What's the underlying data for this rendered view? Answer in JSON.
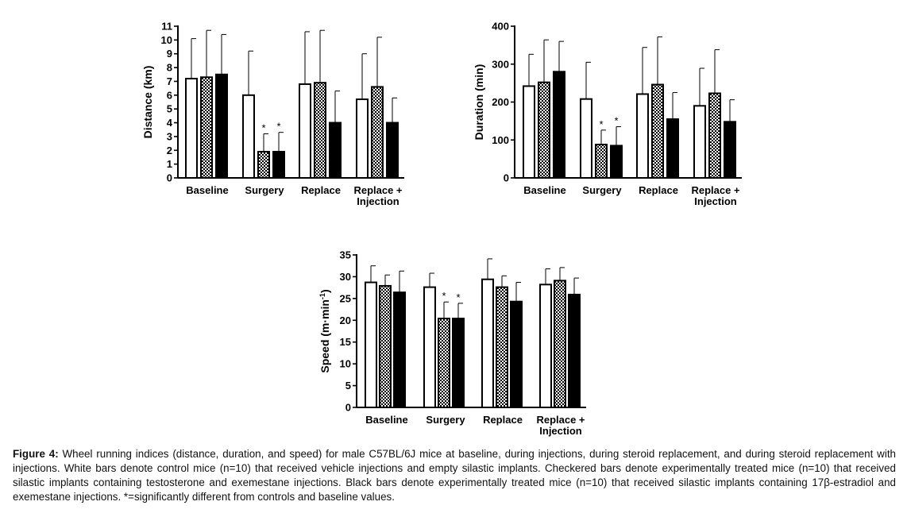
{
  "colors": {
    "control": "#ffffff",
    "testosterone": "checkered",
    "estradiol": "#000000"
  },
  "chart_data": [
    {
      "type": "bar",
      "ylabel": "Distance (km)",
      "ylim": [
        0,
        11
      ],
      "yticks": [
        0,
        1,
        2,
        3,
        4,
        5,
        6,
        7,
        8,
        9,
        10,
        11
      ],
      "categories": [
        "Baseline",
        "Surgery",
        "Replace",
        "Replace + Injection"
      ],
      "category_labels": [
        [
          "Baseline"
        ],
        [
          "Surgery"
        ],
        [
          "Replace"
        ],
        [
          "Replace +",
          "Injection"
        ]
      ],
      "series": [
        {
          "fill": "white",
          "values": [
            7.2,
            6.0,
            6.8,
            5.7
          ],
          "errors": [
            2.9,
            3.2,
            3.8,
            3.3
          ],
          "star": [
            false,
            false,
            false,
            false
          ]
        },
        {
          "fill": "checker",
          "values": [
            7.3,
            1.9,
            6.9,
            6.6
          ],
          "errors": [
            3.4,
            1.3,
            3.8,
            3.6
          ],
          "star": [
            false,
            true,
            false,
            false
          ]
        },
        {
          "fill": "black",
          "values": [
            7.5,
            1.9,
            4.0,
            4.0
          ],
          "errors": [
            2.9,
            1.4,
            2.3,
            1.8
          ],
          "star": [
            false,
            true,
            false,
            false
          ]
        }
      ]
    },
    {
      "type": "bar",
      "ylabel": "Duration (min)",
      "ylim": [
        0,
        400
      ],
      "yticks": [
        0,
        100,
        200,
        300,
        400
      ],
      "categories": [
        "Baseline",
        "Surgery",
        "Replace",
        "Replace + Injection"
      ],
      "category_labels": [
        [
          "Baseline"
        ],
        [
          "Surgery"
        ],
        [
          "Replace"
        ],
        [
          "Replace +",
          "Injection"
        ]
      ],
      "series": [
        {
          "fill": "white",
          "values": [
            242,
            208,
            221,
            190
          ],
          "errors": [
            84,
            97,
            123,
            99
          ],
          "star": [
            false,
            false,
            false,
            false
          ]
        },
        {
          "fill": "checker",
          "values": [
            252,
            88,
            246,
            223
          ],
          "errors": [
            112,
            38,
            126,
            115
          ],
          "star": [
            false,
            true,
            false,
            false
          ]
        },
        {
          "fill": "black",
          "values": [
            280,
            85,
            155,
            148
          ],
          "errors": [
            80,
            50,
            70,
            58
          ],
          "star": [
            false,
            true,
            false,
            false
          ]
        }
      ]
    },
    {
      "type": "bar",
      "ylabel": "Speed (m·min",
      "ylabel_sup": "-1",
      "ylabel_end": ")",
      "ylim": [
        0,
        35
      ],
      "yticks": [
        0,
        5,
        10,
        15,
        20,
        25,
        30,
        35
      ],
      "categories": [
        "Baseline",
        "Surgery",
        "Replace",
        "Replace + Injection"
      ],
      "category_labels": [
        [
          "Baseline"
        ],
        [
          "Surgery"
        ],
        [
          "Replace"
        ],
        [
          "Replace +",
          "Injection"
        ]
      ],
      "series": [
        {
          "fill": "white",
          "values": [
            28.7,
            27.6,
            29.4,
            28.2
          ],
          "errors": [
            3.8,
            3.2,
            4.7,
            3.6
          ],
          "star": [
            false,
            false,
            false,
            false
          ]
        },
        {
          "fill": "checker",
          "values": [
            27.9,
            20.4,
            27.6,
            29.1
          ],
          "errors": [
            2.5,
            3.8,
            2.6,
            3.0
          ],
          "star": [
            false,
            true,
            false,
            false
          ]
        },
        {
          "fill": "black",
          "values": [
            26.4,
            20.4,
            24.3,
            25.9
          ],
          "errors": [
            4.9,
            3.5,
            4.4,
            3.8
          ],
          "star": [
            false,
            true,
            false,
            false
          ]
        }
      ]
    }
  ],
  "caption": {
    "label": "Figure 4:",
    "text": " Wheel running indices (distance, duration, and speed) for male C57BL/6J mice at baseline, during injections, during steroid replacement, and during steroid replacement with injections. White bars denote control mice (n=10) that received vehicle injections and empty silastic implants. Checkered bars denote experimentally treated mice (n=10) that received silastic implants containing testosterone and exemestane injections. Black bars denote experimentally treated mice (n=10) that received silastic implants containing 17β-estradiol and exemestane injections. *=significantly different from controls and baseline values."
  }
}
